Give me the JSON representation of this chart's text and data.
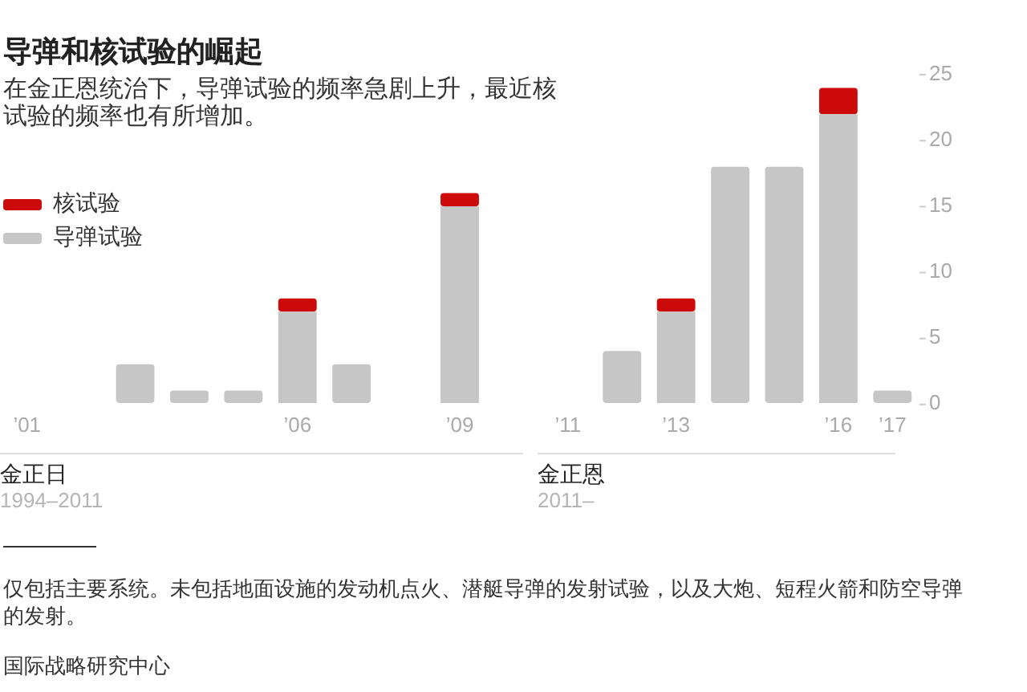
{
  "chart_data": {
    "type": "bar",
    "title": "导弹和核试验的崛起",
    "subtitle": "在金正恩统治下，导弹试验的频率急剧上升，最近核试验的频率也有所增加。",
    "categories": [
      "’01",
      null,
      null,
      null,
      null,
      "’06",
      null,
      null,
      "’09",
      null,
      "’11",
      null,
      "’13",
      null,
      null,
      "’16",
      "’17"
    ],
    "series": [
      {
        "name": "导弹试验",
        "color": "#c6c6c6",
        "values": [
          0,
          0,
          3,
          1,
          1,
          7,
          3,
          0,
          15,
          0,
          0,
          4,
          7,
          18,
          18,
          22,
          1
        ]
      },
      {
        "name": "核试验",
        "color": "#cc0a0a",
        "values": [
          0,
          0,
          0,
          0,
          0,
          1,
          0,
          0,
          1,
          0,
          0,
          0,
          1,
          0,
          0,
          2,
          0
        ]
      }
    ],
    "stacked": true,
    "ylim": [
      0,
      25
    ],
    "yticks": [
      0,
      5,
      10,
      15,
      20,
      25
    ],
    "legend": "top left",
    "annotations": [
      "金正日",
      "1994–2011",
      "金正恩",
      "2011–",
      "仅包括主要系统。未包括地面设施的发动机点火、潜艇导弹的发射试验，以及大炮、短程火箭和防空导弹的发射。",
      "国际战略研究中心"
    ]
  }
}
